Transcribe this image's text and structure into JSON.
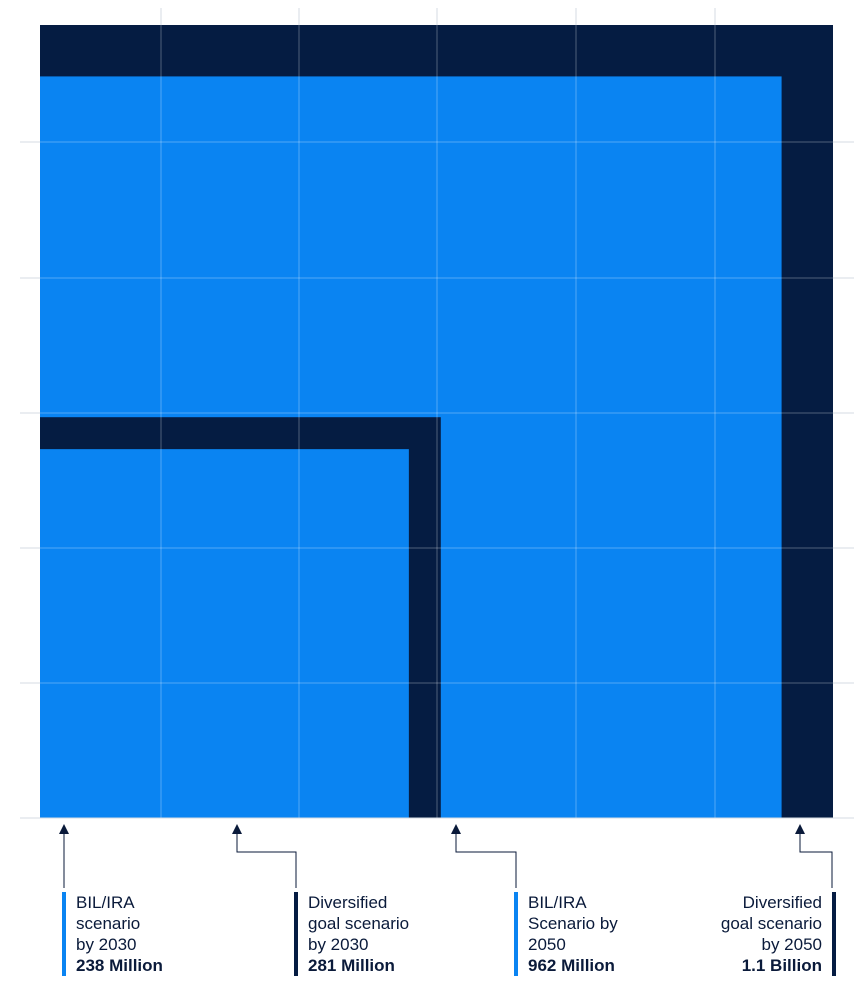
{
  "colors": {
    "bil_ira": "#0a84f2",
    "diversified": "#051c42",
    "grid": "#d5dbe3",
    "arrow": "#0a1a3a"
  },
  "chart_data": {
    "type": "area",
    "grid": true,
    "unit": "Million",
    "series": [
      {
        "desc": "BIL/IRA\nscenario\nby 2030",
        "value_label": "238 Million",
        "value": 238,
        "color_key": "bil_ira"
      },
      {
        "desc": "Diversified\ngoal scenario\nby 2030",
        "value_label": "281 Million",
        "value": 281,
        "color_key": "diversified"
      },
      {
        "desc": "BIL/IRA\nScenario by\n2050",
        "value_label": "962 Million",
        "value": 962,
        "color_key": "bil_ira"
      },
      {
        "desc": "Diversified\ngoal scenario\nby 2050",
        "value_label": "1.1 Billion",
        "value": 1100,
        "color_key": "diversified"
      }
    ]
  }
}
